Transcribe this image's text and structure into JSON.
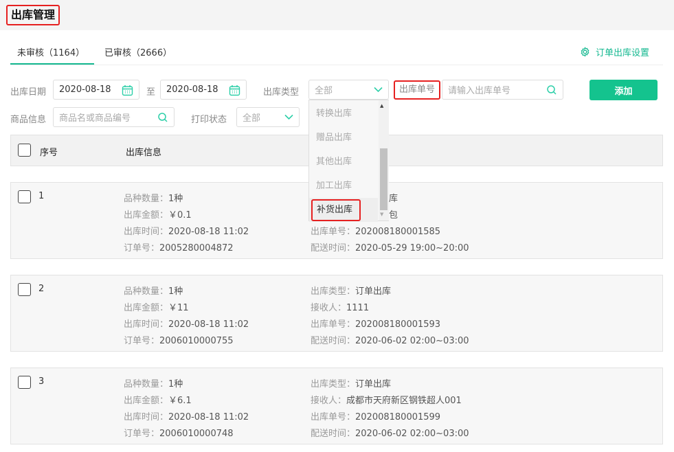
{
  "page_title": "出库管理",
  "tabs": [
    {
      "label": "未审核（1164）",
      "active": true
    },
    {
      "label": "已审核（2666）",
      "active": false
    }
  ],
  "settings_label": "订单出库设置",
  "filters": {
    "date_label": "出库日期",
    "date_from": "2020-08-18",
    "to_label": "至",
    "date_to": "2020-08-18",
    "type_label": "出库类型",
    "type_value": "全部",
    "order_no_label": "出库单号",
    "order_no_placeholder": "请输入出库单号",
    "goods_label": "商品信息",
    "goods_placeholder": "商品名或商品编号",
    "print_label": "打印状态",
    "print_value": "全部",
    "add_button": "添加"
  },
  "dropdown": {
    "options": [
      "转换出库",
      "赠品出库",
      "其他出库",
      "加工出库",
      "补货出库"
    ],
    "highlighted": "补货出库"
  },
  "table": {
    "headers": [
      "序号",
      "出库信息"
    ]
  },
  "rows": [
    {
      "index": "1",
      "left": [
        [
          "品种数量：",
          "1种"
        ],
        [
          "出库金额：",
          "￥0.1"
        ],
        [
          "出库时间：",
          "2020-08-18 11:02"
        ],
        [
          "订单号：",
          "2005280004872"
        ]
      ],
      "right": [
        [
          "",
          ""
        ],
        [
          "",
          ""
        ],
        [
          "出库单号：",
          "202008180001585"
        ],
        [
          "配送时间：",
          "2020-05-29 19:00~20:00"
        ]
      ],
      "partial": [
        "库",
        "包"
      ]
    },
    {
      "index": "2",
      "left": [
        [
          "品种数量：",
          "1种"
        ],
        [
          "出库金额：",
          "￥11"
        ],
        [
          "出库时间：",
          "2020-08-18 11:02"
        ],
        [
          "订单号：",
          "2006010000755"
        ]
      ],
      "right": [
        [
          "出库类型：",
          "订单出库"
        ],
        [
          "接收人：",
          "1111"
        ],
        [
          "出库单号：",
          "202008180001593"
        ],
        [
          "配送时间：",
          "2020-06-02 02:00~03:00"
        ]
      ]
    },
    {
      "index": "3",
      "left": [
        [
          "品种数量：",
          "1种"
        ],
        [
          "出库金额：",
          "￥6.1"
        ],
        [
          "出库时间：",
          "2020-08-18 11:02"
        ],
        [
          "订单号：",
          "2006010000748"
        ]
      ],
      "right": [
        [
          "出库类型：",
          "订单出库"
        ],
        [
          "接收人：",
          "成都市天府新区钢铁超人001"
        ],
        [
          "出库单号：",
          "202008180001599"
        ],
        [
          "配送时间：",
          "2020-06-02 02:00~03:00"
        ]
      ]
    }
  ],
  "colors": {
    "accent": "#14b890",
    "button": "#14c38e",
    "highlight": "#e62020"
  }
}
